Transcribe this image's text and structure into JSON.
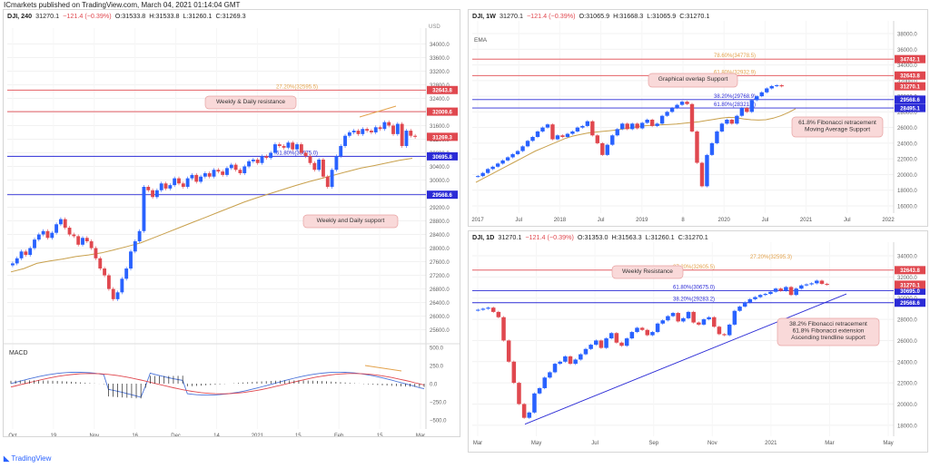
{
  "header": {
    "publisher": "ICmarkets published on TradingView.com, March 04, 2021 01:14:04 GMT"
  },
  "branding": {
    "logo_text": "TradingView"
  },
  "colors": {
    "up": "#2962ff",
    "down": "#e0484f",
    "ema": "#c8a04c",
    "support": "#2b2bd6",
    "resistance": "#e0484f",
    "fib": "#e3a24b",
    "macd": "#4a73d9",
    "signal": "#e0484f"
  },
  "chart_data": [
    {
      "id": "left",
      "type": "candlestick",
      "title": {
        "symbol": "DJI, 240",
        "last": "31270.1",
        "change": "−121.4 (−0.39%)",
        "O": "O:31533.8",
        "H": "H:31533.8",
        "L": "L:31260.1",
        "C": "C:31269.3"
      },
      "currency": "USD",
      "ylim": [
        25350,
        34250
      ],
      "yticks": [
        "34000.0",
        "33600.0",
        "33200.0",
        "32800.0",
        "32400.0",
        "32000.0",
        "31600.0",
        "31200.0",
        "30800.0",
        "30400.0",
        "30000.0",
        "29600.0",
        "29200.0",
        "28800.0",
        "28400.0",
        "28000.0",
        "27600.0",
        "27200.0",
        "26800.0",
        "26400.0",
        "26000.0",
        "25600.0"
      ],
      "xticks": [
        "Oct",
        "19",
        "Nov",
        "16",
        "Dec",
        "14",
        "2021",
        "15",
        "Feb",
        "15",
        "Mar"
      ],
      "closes": [
        27550,
        27700,
        27900,
        27800,
        28000,
        28250,
        28400,
        28500,
        28300,
        28450,
        28700,
        28850,
        28600,
        28400,
        28350,
        28100,
        28300,
        28200,
        28000,
        27700,
        27400,
        27200,
        26800,
        26500,
        26700,
        27100,
        27400,
        27900,
        28200,
        28500,
        29800,
        29700,
        29500,
        29700,
        29900,
        29750,
        29850,
        30050,
        29900,
        29800,
        30050,
        30150,
        29950,
        30100,
        30200,
        30100,
        30300,
        30250,
        30150,
        30350,
        30450,
        30300,
        30200,
        30400,
        30550,
        30600,
        30500,
        30700,
        30650,
        30800,
        31050,
        31000,
        30950,
        31100,
        30900,
        31050,
        30800,
        30700,
        30500,
        30300,
        30600,
        30100,
        29800,
        30300,
        30700,
        31000,
        31300,
        31400,
        31450,
        31350,
        31500,
        31450,
        31400,
        31550,
        31500,
        31700,
        31600,
        31350,
        31650,
        31000,
        31450,
        31300,
        31270
      ],
      "ema": [
        27300,
        27400,
        27550,
        27620,
        27680,
        27750,
        27800,
        27860,
        27950,
        28050,
        28150,
        28300,
        28450,
        28600,
        28750,
        28900,
        29050,
        29200,
        29350,
        29480,
        29600,
        29720,
        29840,
        29950,
        30050,
        30150,
        30250,
        30350,
        30420,
        30500,
        30580,
        30640
      ],
      "levels": [
        {
          "price": "32643.8",
          "label": "32643.8",
          "color": "#e0484f",
          "tag": "27.20%(32595.5)"
        },
        {
          "price": "32009.6",
          "label": "32009.6",
          "color": "#e0484f"
        },
        {
          "price": "30695.8",
          "label": "30695.8",
          "color": "#2b2bd6",
          "tag": "61.80%(30675.0)"
        },
        {
          "price": "29568.6",
          "label": "29568.6",
          "color": "#2b2bd6"
        }
      ],
      "last_label": "31269.3",
      "annotations": [
        "Weekly & Daily resistance",
        "Weekly and Daily support"
      ],
      "macd": {
        "label": "MACD",
        "yticks": [
          "500.0",
          "250.0",
          "0.0",
          "−250.0",
          "−500.0"
        ]
      }
    },
    {
      "id": "weekly",
      "type": "candlestick",
      "title": {
        "symbol": "DJI, 1W",
        "last": "31270.1",
        "change": "−121.4 (−0.39%)",
        "O": "O:31065.9",
        "H": "H:31668.3",
        "L": "L:31065.9",
        "C": "C:31270.1"
      },
      "study": "EMA",
      "ylim": [
        15300,
        38700
      ],
      "yticks": [
        "38000.0",
        "36000.0",
        "34000.0",
        "32000.0",
        "30000.0",
        "28000.0",
        "26000.0",
        "24000.0",
        "22000.0",
        "20000.0",
        "18000.0",
        "16000.0"
      ],
      "xticks": [
        "2017",
        "Jul",
        "2018",
        "Jul",
        "2019",
        "8",
        "2020",
        "Jul",
        "2021",
        "Jul",
        "2022"
      ],
      "closes": [
        19800,
        20200,
        20700,
        21000,
        21400,
        21800,
        22200,
        22600,
        23000,
        23600,
        24300,
        24800,
        25500,
        26000,
        26400,
        24500,
        25000,
        24800,
        25200,
        25500,
        26000,
        26200,
        26800,
        25000,
        24000,
        22500,
        23800,
        25000,
        25800,
        26500,
        25800,
        26500,
        25900,
        26600,
        27000,
        26200,
        26500,
        27500,
        28000,
        28500,
        28900,
        29300,
        29000,
        25500,
        21500,
        18500,
        22500,
        24000,
        25500,
        26500,
        27000,
        26500,
        27500,
        28500,
        28000,
        29500,
        30000,
        30500,
        31000,
        31300,
        31400,
        31270
      ],
      "ema": [
        19000,
        19500,
        20000,
        20500,
        21000,
        21500,
        22000,
        22500,
        23000,
        23400,
        23800,
        24200,
        24600,
        24900,
        25100,
        25300,
        25400,
        25500,
        25600,
        25700,
        25850,
        26000,
        26150,
        26250,
        26300,
        26350,
        26400,
        26450,
        26550,
        26650,
        26750,
        26900,
        27050,
        27200,
        27300,
        27250,
        27100,
        27000,
        26950,
        27000,
        27200,
        27500,
        27900,
        28400
      ],
      "levels": [
        {
          "price": "34742.1",
          "label": "34742.1",
          "color": "#e0484f",
          "tag": "78.60%(34778.5)"
        },
        {
          "price": "32643.8",
          "label": "32643.8",
          "color": "#e0484f",
          "tag": "61.80%(32932.9)"
        },
        {
          "price": "29568.6",
          "label": "29568.6",
          "color": "#2b2bd6",
          "tag": "38.20%(29768.9)"
        },
        {
          "price": "28495.1",
          "label": "28495.1",
          "color": "#2b2bd6",
          "tag": "61.80%(28321.0)"
        }
      ],
      "last_label": "31270.1",
      "annotations": [
        "Graphical overlap Support",
        "61.8% Fibonacci retracement\nMoving Average Support"
      ]
    },
    {
      "id": "daily",
      "type": "candlestick",
      "title": {
        "symbol": "DJI, 1D",
        "last": "31270.1",
        "change": "−121.4 (−0.39%)",
        "O": "O:31353.0",
        "H": "H:31563.3",
        "L": "L:31260.1",
        "C": "C:31270.1"
      },
      "ylim": [
        17300,
        34600
      ],
      "yticks": [
        "34000.0",
        "32000.0",
        "30000.0",
        "28000.0",
        "26000.0",
        "24000.0",
        "22000.0",
        "20000.0",
        "18000.0"
      ],
      "xticks": [
        "Mar",
        "May",
        "Jul",
        "Sep",
        "Nov",
        "2021",
        "Mar",
        "May"
      ],
      "closes": [
        28900,
        29000,
        29100,
        28700,
        28200,
        26000,
        24000,
        22000,
        20000,
        18700,
        19200,
        21000,
        21500,
        22500,
        23000,
        23800,
        24000,
        24500,
        23800,
        24200,
        24700,
        25200,
        25600,
        26000,
        25300,
        26200,
        26700,
        25800,
        25500,
        26200,
        26800,
        27200,
        27000,
        26500,
        26800,
        27600,
        27900,
        28300,
        28600,
        27800,
        28100,
        28700,
        27700,
        27500,
        28000,
        28200,
        27300,
        26600,
        26500,
        27500,
        28800,
        29200,
        29600,
        29900,
        30100,
        30300,
        30400,
        30600,
        30900,
        30700,
        31050,
        30300,
        30900,
        31200,
        31300,
        31400,
        31650,
        31350,
        31270
      ],
      "levels": [
        {
          "price": "32643.8",
          "label": "32643.8",
          "color": "#e0484f",
          "tag": "27.20%(32605.5)"
        },
        {
          "price": "30695.0",
          "label": "30695.0",
          "color": "#2b2bd6",
          "tag": "61.80%(30675.0)"
        },
        {
          "price": "29568.6",
          "label": "29568.6",
          "color": "#2b2bd6",
          "tag": "38.20%(29283.2)"
        }
      ],
      "extra_tag": "27.20%(32595.3)",
      "last_label": "31270.1",
      "annotations": [
        "Weekly Resistance",
        "38.2% Fibonacci retracement\n61.8% Fibonacci extension\nAscending trendline support"
      ]
    }
  ]
}
